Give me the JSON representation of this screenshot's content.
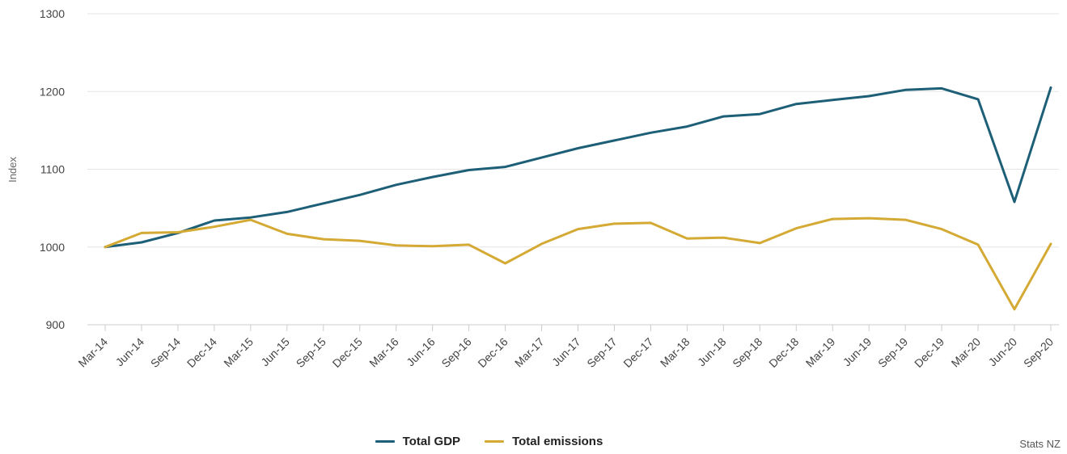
{
  "chart_data": {
    "type": "line",
    "title": "",
    "xlabel": "",
    "ylabel": "Index",
    "ylim": [
      900,
      1300
    ],
    "yticks": [
      900,
      1000,
      1100,
      1200,
      1300
    ],
    "grid": true,
    "legend_position": "bottom-center",
    "categories": [
      "Mar-14",
      "Jun-14",
      "Sep-14",
      "Dec-14",
      "Mar-15",
      "Jun-15",
      "Sep-15",
      "Dec-15",
      "Mar-16",
      "Jun-16",
      "Sep-16",
      "Dec-16",
      "Mar-17",
      "Jun-17",
      "Sep-17",
      "Dec-17",
      "Mar-18",
      "Jun-18",
      "Sep-18",
      "Dec-18",
      "Mar-19",
      "Jun-19",
      "Sep-19",
      "Dec-19",
      "Mar-20",
      "Jun-20",
      "Sep-20"
    ],
    "series": [
      {
        "name": "Total GDP",
        "color": "#1e5f78",
        "values": [
          1000,
          1006,
          1018,
          1034,
          1038,
          1045,
          1056,
          1067,
          1080,
          1090,
          1099,
          1103,
          1115,
          1127,
          1137,
          1147,
          1155,
          1168,
          1171,
          1184,
          1189,
          1194,
          1202,
          1204,
          1190,
          1058,
          1205
        ]
      },
      {
        "name": "Total emissions",
        "color": "#d4aa35",
        "values": [
          1000,
          1018,
          1019,
          1026,
          1035,
          1017,
          1010,
          1008,
          1002,
          1001,
          1003,
          979,
          1004,
          1023,
          1030,
          1031,
          1011,
          1012,
          1005,
          1024,
          1036,
          1037,
          1035,
          1023,
          1003,
          920,
          1004
        ]
      }
    ]
  },
  "source": "Stats NZ"
}
